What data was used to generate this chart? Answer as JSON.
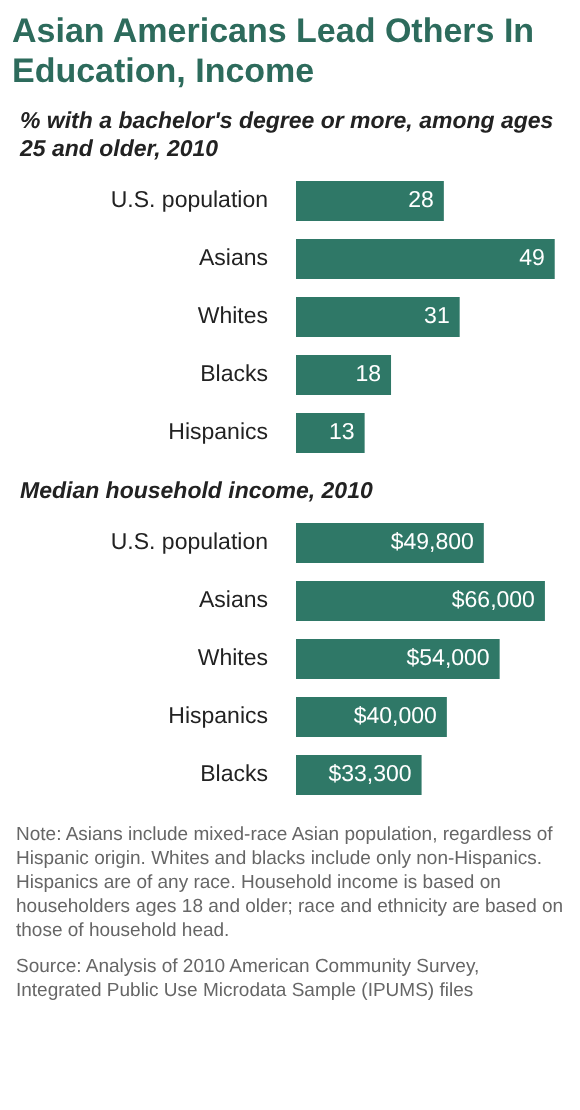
{
  "chart_data": [
    {
      "type": "bar",
      "orientation": "horizontal",
      "title": "Asian Americans Lead Others In Education, Income",
      "subtitle": "% with a bachelor's degree or more, among ages 25 and older, 2010",
      "categories": [
        "U.S. population",
        "Asians",
        "Whites",
        "Blacks",
        "Hispanics"
      ],
      "values": [
        28,
        49,
        31,
        18,
        13
      ],
      "color": "#2f7867",
      "data_labels": true
    },
    {
      "type": "bar",
      "orientation": "horizontal",
      "subtitle": "Median household income, 2010",
      "categories": [
        "U.S. population",
        "Asians",
        "Whites",
        "Hispanics",
        "Blacks"
      ],
      "values": [
        49800,
        66000,
        54000,
        40000,
        33300
      ],
      "value_labels": [
        "$49,800",
        "$66,000",
        "$54,000",
        "$40,000",
        "$33,300"
      ],
      "color": "#2f7867",
      "annotations": [
        "Note: Asians include mixed-race Asian population, regardless of Hispanic origin. Whites and blacks include only non-Hispanics. Hispanics are of any race. Household income is based on householders ages 18 and older; race and ethnicity are based on those of household head.",
        "Source: Analysis of 2010 American Community Survey, Integrated Public Use Microdata Sample (IPUMS) files"
      ]
    }
  ]
}
